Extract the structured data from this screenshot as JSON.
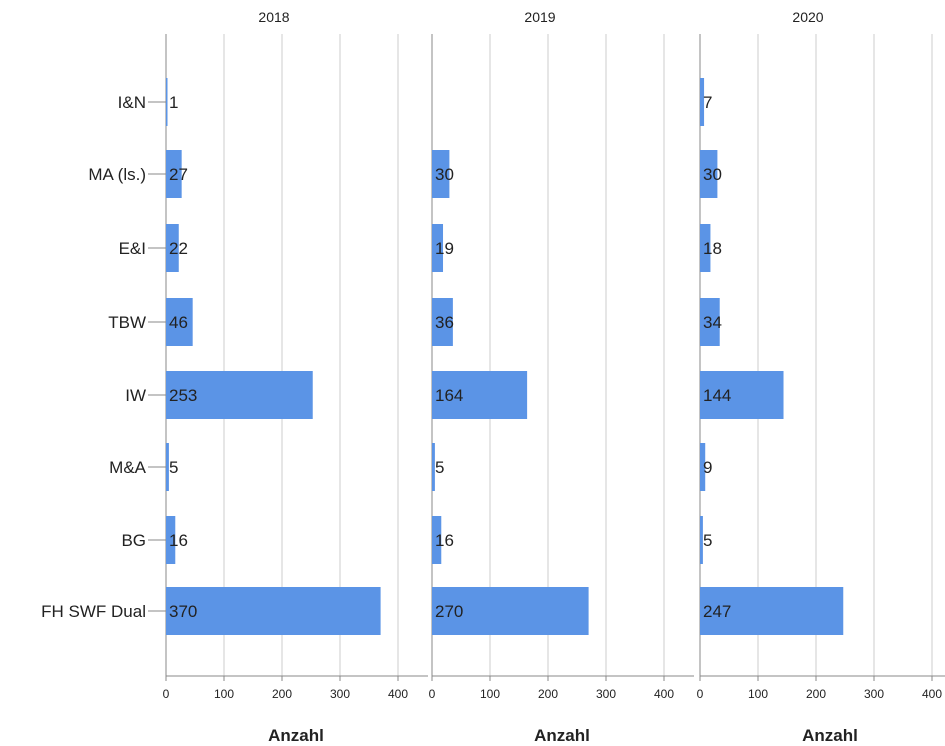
{
  "chart_data": {
    "type": "bar",
    "orientation": "horizontal",
    "categories": [
      "I&N",
      "MA (ls.)",
      "E&I",
      "TBW",
      "IW",
      "M&A",
      "BG",
      "FH SWF Dual"
    ],
    "panels": [
      {
        "title": "2018",
        "values": [
          1,
          27,
          22,
          46,
          253,
          5,
          16,
          370
        ]
      },
      {
        "title": "2019",
        "values": [
          null,
          30,
          19,
          36,
          164,
          5,
          16,
          270
        ]
      },
      {
        "title": "2020",
        "values": [
          7,
          30,
          18,
          34,
          144,
          9,
          5,
          247
        ]
      }
    ],
    "xlabel": "Anzahl",
    "xlim": [
      0,
      400
    ],
    "xticks": [
      0,
      100,
      200,
      300,
      400
    ],
    "grid": true,
    "colors": {
      "bar": "#5b94e6",
      "grid": "#cccccc",
      "axis": "#888888"
    }
  }
}
